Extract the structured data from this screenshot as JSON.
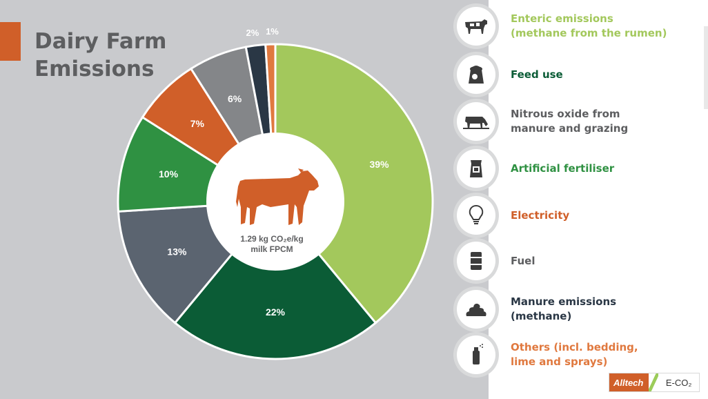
{
  "title": {
    "line1": "Dairy Farm",
    "line2": "Emissions"
  },
  "center": {
    "line1": "1.29 kg CO₂e/kg",
    "line2": "milk FPCM"
  },
  "colors": {
    "enteric": "#a3c85c",
    "feed": "#0b5c36",
    "nitrous": "#5b6470",
    "fertiliser": "#2f9142",
    "electricity": "#d05f29",
    "fuel": "#848689",
    "manure": "#2a3745",
    "others": "#e0793f"
  },
  "chart_data": {
    "type": "pie",
    "title": "Dairy Farm Emissions",
    "slices": [
      {
        "label": "Enteric emissions (methane from the rumen)",
        "value": 39,
        "display": "39%",
        "color": "#a3c85c"
      },
      {
        "label": "Feed use",
        "value": 22,
        "display": "22%",
        "color": "#0b5c36"
      },
      {
        "label": "Nitrous oxide from manure and grazing",
        "value": 13,
        "display": "13%",
        "color": "#5b6470"
      },
      {
        "label": "Artificial fertiliser",
        "value": 10,
        "display": "10%",
        "color": "#2f9142"
      },
      {
        "label": "Electricity",
        "value": 7,
        "display": "7%",
        "color": "#d05f29"
      },
      {
        "label": "Fuel",
        "value": 6,
        "display": "6%",
        "color": "#848689"
      },
      {
        "label": "Manure emissions (methane)",
        "value": 2,
        "display": "2%",
        "color": "#2a3745"
      },
      {
        "label": "Others (incl. bedding, lime and sprays)",
        "value": 1,
        "display": "1%",
        "color": "#e0793f"
      }
    ]
  },
  "legend": [
    {
      "icon": "cow-icon",
      "line1": "Enteric emissions",
      "line2": "(methane from the rumen)",
      "color": "#a3c85c"
    },
    {
      "icon": "feed-bag-icon",
      "line1": "Feed use",
      "line2": "",
      "color": "#0b5c36"
    },
    {
      "icon": "grazing-cow-icon",
      "line1": "Nitrous oxide from",
      "line2": "manure and grazing",
      "color": "#5d5e60"
    },
    {
      "icon": "fertiliser-bag-icon",
      "line1": "Artificial fertiliser",
      "line2": "",
      "color": "#2f9142"
    },
    {
      "icon": "lightbulb-icon",
      "line1": "Electricity",
      "line2": "",
      "color": "#d05f29"
    },
    {
      "icon": "fuel-barrel-icon",
      "line1": "Fuel",
      "line2": "",
      "color": "#5d5e60"
    },
    {
      "icon": "manure-icon",
      "line1": "Manure emissions",
      "line2": "(methane)",
      "color": "#2a3745"
    },
    {
      "icon": "spray-can-icon",
      "line1": "Others (incl. bedding,",
      "line2": "lime and sprays)",
      "color": "#e0793f"
    }
  ],
  "logo": {
    "brand": "Alltech",
    "product": "E-CO₂"
  }
}
